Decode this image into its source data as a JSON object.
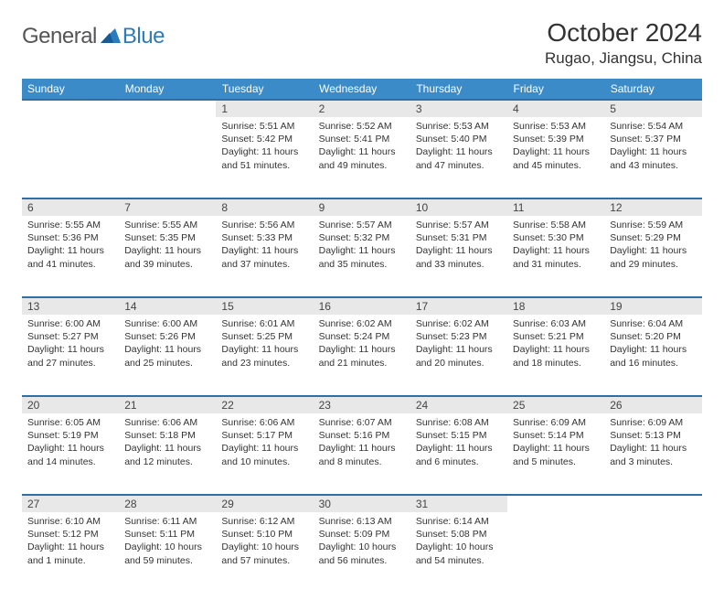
{
  "logo": {
    "text1": "General",
    "text2": "Blue"
  },
  "title": "October 2024",
  "location": "Rugao, Jiangsu, China",
  "colors": {
    "header_bg": "#3b8bc9",
    "header_border": "#2f6fa8",
    "daynum_bg": "#e8e8e8",
    "logo_blue": "#2b7bbf"
  },
  "weekdays": [
    "Sunday",
    "Monday",
    "Tuesday",
    "Wednesday",
    "Thursday",
    "Friday",
    "Saturday"
  ],
  "weeks": [
    [
      null,
      null,
      {
        "n": "1",
        "sr": "5:51 AM",
        "ss": "5:42 PM",
        "dl": "11 hours and 51 minutes."
      },
      {
        "n": "2",
        "sr": "5:52 AM",
        "ss": "5:41 PM",
        "dl": "11 hours and 49 minutes."
      },
      {
        "n": "3",
        "sr": "5:53 AM",
        "ss": "5:40 PM",
        "dl": "11 hours and 47 minutes."
      },
      {
        "n": "4",
        "sr": "5:53 AM",
        "ss": "5:39 PM",
        "dl": "11 hours and 45 minutes."
      },
      {
        "n": "5",
        "sr": "5:54 AM",
        "ss": "5:37 PM",
        "dl": "11 hours and 43 minutes."
      }
    ],
    [
      {
        "n": "6",
        "sr": "5:55 AM",
        "ss": "5:36 PM",
        "dl": "11 hours and 41 minutes."
      },
      {
        "n": "7",
        "sr": "5:55 AM",
        "ss": "5:35 PM",
        "dl": "11 hours and 39 minutes."
      },
      {
        "n": "8",
        "sr": "5:56 AM",
        "ss": "5:33 PM",
        "dl": "11 hours and 37 minutes."
      },
      {
        "n": "9",
        "sr": "5:57 AM",
        "ss": "5:32 PM",
        "dl": "11 hours and 35 minutes."
      },
      {
        "n": "10",
        "sr": "5:57 AM",
        "ss": "5:31 PM",
        "dl": "11 hours and 33 minutes."
      },
      {
        "n": "11",
        "sr": "5:58 AM",
        "ss": "5:30 PM",
        "dl": "11 hours and 31 minutes."
      },
      {
        "n": "12",
        "sr": "5:59 AM",
        "ss": "5:29 PM",
        "dl": "11 hours and 29 minutes."
      }
    ],
    [
      {
        "n": "13",
        "sr": "6:00 AM",
        "ss": "5:27 PM",
        "dl": "11 hours and 27 minutes."
      },
      {
        "n": "14",
        "sr": "6:00 AM",
        "ss": "5:26 PM",
        "dl": "11 hours and 25 minutes."
      },
      {
        "n": "15",
        "sr": "6:01 AM",
        "ss": "5:25 PM",
        "dl": "11 hours and 23 minutes."
      },
      {
        "n": "16",
        "sr": "6:02 AM",
        "ss": "5:24 PM",
        "dl": "11 hours and 21 minutes."
      },
      {
        "n": "17",
        "sr": "6:02 AM",
        "ss": "5:23 PM",
        "dl": "11 hours and 20 minutes."
      },
      {
        "n": "18",
        "sr": "6:03 AM",
        "ss": "5:21 PM",
        "dl": "11 hours and 18 minutes."
      },
      {
        "n": "19",
        "sr": "6:04 AM",
        "ss": "5:20 PM",
        "dl": "11 hours and 16 minutes."
      }
    ],
    [
      {
        "n": "20",
        "sr": "6:05 AM",
        "ss": "5:19 PM",
        "dl": "11 hours and 14 minutes."
      },
      {
        "n": "21",
        "sr": "6:06 AM",
        "ss": "5:18 PM",
        "dl": "11 hours and 12 minutes."
      },
      {
        "n": "22",
        "sr": "6:06 AM",
        "ss": "5:17 PM",
        "dl": "11 hours and 10 minutes."
      },
      {
        "n": "23",
        "sr": "6:07 AM",
        "ss": "5:16 PM",
        "dl": "11 hours and 8 minutes."
      },
      {
        "n": "24",
        "sr": "6:08 AM",
        "ss": "5:15 PM",
        "dl": "11 hours and 6 minutes."
      },
      {
        "n": "25",
        "sr": "6:09 AM",
        "ss": "5:14 PM",
        "dl": "11 hours and 5 minutes."
      },
      {
        "n": "26",
        "sr": "6:09 AM",
        "ss": "5:13 PM",
        "dl": "11 hours and 3 minutes."
      }
    ],
    [
      {
        "n": "27",
        "sr": "6:10 AM",
        "ss": "5:12 PM",
        "dl": "11 hours and 1 minute."
      },
      {
        "n": "28",
        "sr": "6:11 AM",
        "ss": "5:11 PM",
        "dl": "10 hours and 59 minutes."
      },
      {
        "n": "29",
        "sr": "6:12 AM",
        "ss": "5:10 PM",
        "dl": "10 hours and 57 minutes."
      },
      {
        "n": "30",
        "sr": "6:13 AM",
        "ss": "5:09 PM",
        "dl": "10 hours and 56 minutes."
      },
      {
        "n": "31",
        "sr": "6:14 AM",
        "ss": "5:08 PM",
        "dl": "10 hours and 54 minutes."
      },
      null,
      null
    ]
  ],
  "labels": {
    "sunrise": "Sunrise:",
    "sunset": "Sunset:",
    "daylight": "Daylight:"
  }
}
